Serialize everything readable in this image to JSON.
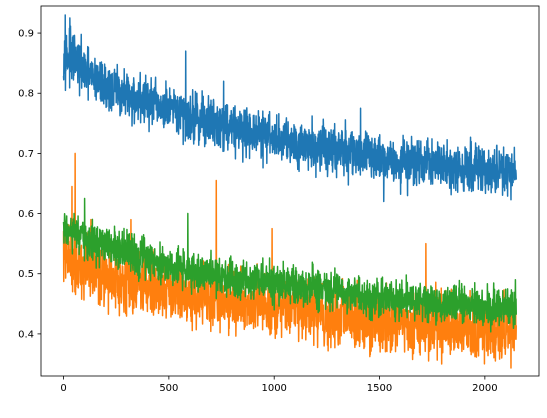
{
  "chart_data": {
    "type": "line",
    "title": "",
    "xlabel": "",
    "ylabel": "",
    "xlim": [
      -107,
      2257
    ],
    "ylim": [
      0.33,
      0.945
    ],
    "xticks": [
      0,
      500,
      1000,
      1500,
      2000
    ],
    "yticks": [
      0.4,
      0.5,
      0.6,
      0.7,
      0.8,
      0.9
    ],
    "xtick_labels": [
      "0",
      "500",
      "1000",
      "1500",
      "2000"
    ],
    "ytick_labels": [
      "0.4",
      "0.5",
      "0.6",
      "0.7",
      "0.8",
      "0.9"
    ],
    "grid": false,
    "legend": "none",
    "n_points": 2150,
    "series": [
      {
        "color": "#1f77b4",
        "x": [
          0,
          50,
          100,
          200,
          300,
          400,
          500,
          600,
          700,
          800,
          900,
          1000,
          1100,
          1200,
          1300,
          1400,
          1500,
          1600,
          1700,
          1800,
          1900,
          2000,
          2100,
          2150
        ],
        "y": [
          0.865,
          0.855,
          0.835,
          0.81,
          0.795,
          0.785,
          0.77,
          0.76,
          0.755,
          0.745,
          0.735,
          0.725,
          0.72,
          0.71,
          0.705,
          0.7,
          0.695,
          0.685,
          0.685,
          0.68,
          0.675,
          0.67,
          0.665,
          0.665
        ],
        "noise": 0.02,
        "spikes": [
          {
            "x": 8,
            "y": 0.93
          },
          {
            "x": 30,
            "y": 0.925
          },
          {
            "x": 70,
            "y": 0.88
          },
          {
            "x": 390,
            "y": 0.83
          },
          {
            "x": 580,
            "y": 0.87
          },
          {
            "x": 760,
            "y": 0.82
          },
          {
            "x": 1410,
            "y": 0.775
          },
          {
            "x": 1520,
            "y": 0.62
          },
          {
            "x": 2050,
            "y": 0.635
          },
          {
            "x": 2140,
            "y": 0.71
          }
        ]
      },
      {
        "color": "#ff7f0e",
        "x": [
          0,
          50,
          100,
          200,
          300,
          400,
          500,
          600,
          700,
          800,
          900,
          1000,
          1100,
          1200,
          1300,
          1400,
          1500,
          1600,
          1700,
          1800,
          1900,
          2000,
          2100,
          2150
        ],
        "y": [
          0.535,
          0.52,
          0.51,
          0.5,
          0.49,
          0.48,
          0.475,
          0.465,
          0.46,
          0.455,
          0.45,
          0.445,
          0.44,
          0.435,
          0.43,
          0.425,
          0.42,
          0.42,
          0.415,
          0.415,
          0.41,
          0.41,
          0.405,
          0.405
        ],
        "noise": 0.025,
        "spikes": [
          {
            "x": 40,
            "y": 0.645
          },
          {
            "x": 55,
            "y": 0.7
          },
          {
            "x": 130,
            "y": 0.59
          },
          {
            "x": 320,
            "y": 0.59
          },
          {
            "x": 725,
            "y": 0.655
          },
          {
            "x": 990,
            "y": 0.575
          },
          {
            "x": 1150,
            "y": 0.39
          },
          {
            "x": 1720,
            "y": 0.55
          },
          {
            "x": 2050,
            "y": 0.355
          },
          {
            "x": 2080,
            "y": 0.36
          }
        ]
      },
      {
        "color": "#2ca02c",
        "x": [
          0,
          50,
          100,
          200,
          300,
          400,
          500,
          600,
          700,
          800,
          900,
          1000,
          1100,
          1200,
          1300,
          1400,
          1500,
          1600,
          1700,
          1800,
          1900,
          2000,
          2100,
          2150
        ],
        "y": [
          0.575,
          0.565,
          0.555,
          0.545,
          0.535,
          0.525,
          0.515,
          0.505,
          0.5,
          0.495,
          0.49,
          0.485,
          0.48,
          0.475,
          0.47,
          0.465,
          0.46,
          0.455,
          0.455,
          0.45,
          0.45,
          0.445,
          0.445,
          0.445
        ],
        "noise": 0.016,
        "spikes": [
          {
            "x": 50,
            "y": 0.6
          },
          {
            "x": 100,
            "y": 0.625
          },
          {
            "x": 170,
            "y": 0.51
          },
          {
            "x": 590,
            "y": 0.6
          },
          {
            "x": 1000,
            "y": 0.44
          },
          {
            "x": 2090,
            "y": 0.42
          },
          {
            "x": 2145,
            "y": 0.49
          }
        ]
      }
    ]
  }
}
